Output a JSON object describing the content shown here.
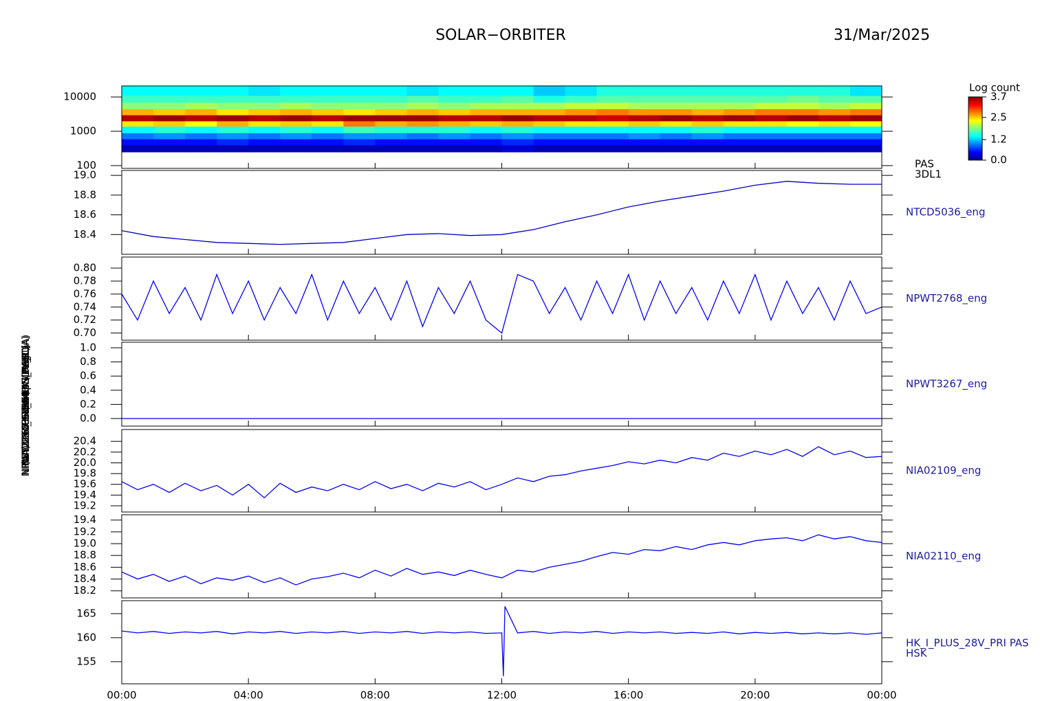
{
  "title": "SOLAR−ORBITER",
  "date": "31/Mar/2025",
  "chart_data": [
    {
      "type": "spectrogram",
      "ylabel": "E (eV)",
      "labels": [
        "PAS",
        "3DL1"
      ],
      "ylog": true,
      "ylim": [
        83,
        21000
      ],
      "yticks": [
        100,
        1000,
        10000
      ],
      "xlim": [
        0,
        24
      ],
      "x_bins": [
        0,
        1,
        2,
        3,
        4,
        5,
        6,
        7,
        8,
        9,
        10,
        11,
        12,
        13,
        14,
        15,
        16,
        17,
        18,
        19,
        20,
        21,
        22,
        23,
        24
      ],
      "energy_bins": [
        250,
        400,
        600,
        900,
        1400,
        2000,
        3000,
        4500,
        7000,
        11000,
        21000
      ],
      "colorbar": {
        "label": "Log count",
        "lim": [
          0,
          3.7
        ],
        "ticks": [
          {
            "value": 0,
            "label": "0.0"
          },
          1.2,
          2.5,
          3.7
        ]
      },
      "values": [
        [
          0.2,
          0.5,
          0.9,
          1.4,
          2.4,
          3.5,
          2.6,
          1.9,
          1.6,
          1.4
        ],
        [
          0.2,
          0.5,
          1.0,
          1.5,
          2.5,
          3.6,
          2.5,
          1.9,
          1.6,
          1.4
        ],
        [
          0.2,
          0.5,
          0.9,
          1.4,
          2.3,
          3.5,
          2.6,
          2.0,
          1.6,
          1.4
        ],
        [
          0.2,
          0.6,
          1.0,
          1.5,
          2.6,
          3.6,
          2.4,
          1.9,
          1.6,
          1.4
        ],
        [
          0.2,
          0.5,
          0.9,
          1.4,
          2.4,
          3.5,
          2.5,
          1.9,
          1.6,
          1.3
        ],
        [
          0.2,
          0.5,
          1.0,
          1.5,
          2.5,
          3.6,
          2.6,
          2.0,
          1.6,
          1.4
        ],
        [
          0.2,
          0.5,
          0.9,
          1.4,
          2.4,
          3.5,
          2.5,
          1.9,
          1.6,
          1.4
        ],
        [
          0.2,
          0.6,
          1.0,
          1.6,
          2.8,
          3.6,
          2.4,
          1.9,
          1.6,
          1.4
        ],
        [
          0.2,
          0.5,
          1.0,
          1.5,
          2.6,
          3.6,
          2.5,
          1.9,
          1.6,
          1.4
        ],
        [
          0.2,
          0.5,
          0.9,
          1.5,
          2.7,
          3.6,
          2.6,
          2.0,
          1.7,
          1.3
        ],
        [
          0.2,
          0.5,
          1.0,
          1.5,
          2.6,
          3.5,
          2.5,
          1.9,
          1.6,
          1.4
        ],
        [
          0.2,
          0.5,
          0.9,
          1.4,
          2.5,
          3.5,
          2.6,
          2.0,
          1.6,
          1.4
        ],
        [
          0.3,
          0.6,
          1.0,
          1.5,
          2.6,
          3.6,
          2.6,
          2.0,
          1.7,
          1.4
        ],
        [
          0.2,
          0.5,
          0.9,
          1.4,
          2.5,
          3.5,
          2.6,
          2.0,
          1.5,
          1.2
        ],
        [
          0.2,
          0.5,
          0.9,
          1.4,
          2.4,
          3.5,
          2.7,
          2.1,
          1.6,
          1.3
        ],
        [
          0.2,
          0.5,
          0.9,
          1.4,
          2.4,
          3.4,
          2.8,
          2.1,
          1.7,
          1.5
        ],
        [
          0.2,
          0.5,
          1.0,
          1.4,
          2.5,
          3.5,
          2.7,
          2.0,
          1.7,
          1.5
        ],
        [
          0.2,
          0.5,
          0.9,
          1.4,
          2.4,
          3.6,
          2.7,
          2.0,
          1.7,
          1.5
        ],
        [
          0.2,
          0.5,
          1.0,
          1.5,
          2.5,
          3.5,
          2.6,
          2.0,
          1.7,
          1.5
        ],
        [
          0.2,
          0.5,
          0.9,
          1.4,
          2.4,
          3.6,
          2.7,
          2.0,
          1.7,
          1.5
        ],
        [
          0.2,
          0.5,
          0.9,
          1.4,
          2.4,
          3.5,
          2.8,
          2.1,
          1.7,
          1.5
        ],
        [
          0.2,
          0.5,
          0.9,
          1.4,
          2.3,
          3.6,
          2.8,
          2.1,
          1.8,
          1.5
        ],
        [
          0.2,
          0.5,
          0.9,
          1.4,
          2.4,
          3.5,
          2.7,
          2.0,
          1.7,
          1.5
        ],
        [
          0.2,
          0.5,
          0.9,
          1.4,
          2.3,
          3.6,
          2.8,
          2.1,
          1.7,
          1.3
        ]
      ]
    },
    {
      "type": "line",
      "ylabel": "NTCD5036 Temp (DegC)",
      "labels": [
        "NTCD5036_eng"
      ],
      "color": "#0000c0",
      "ylim": [
        18.2,
        19.05
      ],
      "yticks": [
        18.4,
        18.6,
        18.8,
        {
          "value": 19,
          "label": "19.0"
        }
      ],
      "xlim": [
        0,
        24
      ],
      "x": [
        0,
        1,
        2,
        3,
        4,
        5,
        6,
        7,
        8,
        9,
        10,
        11,
        12,
        13,
        14,
        15,
        16,
        17,
        18,
        19,
        20,
        21,
        22,
        23,
        24
      ],
      "values": [
        18.44,
        18.38,
        18.35,
        18.32,
        18.31,
        18.3,
        18.31,
        18.32,
        18.36,
        18.4,
        18.41,
        18.39,
        18.4,
        18.45,
        18.53,
        18.6,
        18.68,
        18.74,
        18.79,
        18.84,
        18.9,
        18.94,
        18.92,
        18.91,
        18.91
      ]
    },
    {
      "type": "line",
      "ylabel": "NPWT2768 SWA-EAS PWR (A)",
      "labels": [
        "NPWT2768_eng"
      ],
      "color": "#0000ff",
      "ylim": [
        0.689,
        0.817
      ],
      "yticks": [
        {
          "value": 0.7,
          "label": "0.70"
        },
        0.72,
        0.74,
        0.76,
        0.78,
        {
          "value": 0.8,
          "label": "0.80"
        }
      ],
      "xlim": [
        0,
        24
      ],
      "x": [
        0,
        0.5,
        1,
        1.5,
        2,
        2.5,
        3,
        3.5,
        4,
        4.5,
        5,
        5.5,
        6,
        6.5,
        7,
        7.5,
        8,
        8.5,
        9,
        9.5,
        10,
        10.5,
        11,
        11.5,
        12,
        12.5,
        13,
        13.5,
        14,
        14.5,
        15,
        15.5,
        16,
        16.5,
        17,
        17.5,
        18,
        18.5,
        19,
        19.5,
        20,
        20.5,
        21,
        21.5,
        22,
        22.5,
        23,
        23.5,
        24
      ],
      "values": [
        0.76,
        0.72,
        0.78,
        0.73,
        0.77,
        0.72,
        0.79,
        0.73,
        0.78,
        0.72,
        0.77,
        0.73,
        0.79,
        0.72,
        0.78,
        0.73,
        0.77,
        0.72,
        0.78,
        0.71,
        0.77,
        0.73,
        0.78,
        0.72,
        0.7,
        0.79,
        0.78,
        0.73,
        0.77,
        0.72,
        0.78,
        0.73,
        0.79,
        0.72,
        0.78,
        0.73,
        0.77,
        0.72,
        0.78,
        0.73,
        0.79,
        0.72,
        0.78,
        0.73,
        0.77,
        0.72,
        0.78,
        0.73,
        0.74
      ]
    },
    {
      "type": "line",
      "ylabel": "NPWT3267 SWA-HIS PWR (A)",
      "labels": [
        "NPWT3267_eng"
      ],
      "color": "#0000ff",
      "ylim": [
        -0.107,
        1.078
      ],
      "yticks": [
        {
          "value": 0,
          "label": "0.0"
        },
        0.2,
        0.4,
        0.6,
        0.8,
        {
          "value": 1,
          "label": "1.0"
        }
      ],
      "xlim": [
        0,
        24
      ],
      "x": [
        0,
        24
      ],
      "values": [
        0,
        0
      ]
    },
    {
      "type": "line",
      "ylabel": "NIA02109 THERM (DegC)",
      "labels": [
        "NIA02109_eng"
      ],
      "color": "#0000ff",
      "ylim": [
        19.085,
        20.62
      ],
      "yticks": [
        19.2,
        19.4,
        19.6,
        19.8,
        {
          "value": 20,
          "label": "20.0"
        },
        20.2,
        20.4
      ],
      "xlim": [
        0,
        24
      ],
      "x": [
        0,
        0.5,
        1,
        1.5,
        2,
        2.5,
        3,
        3.5,
        4,
        4.5,
        5,
        5.5,
        6,
        6.5,
        7,
        7.5,
        8,
        8.5,
        9,
        9.5,
        10,
        10.5,
        11,
        11.5,
        12,
        12.5,
        13,
        13.5,
        14,
        14.5,
        15,
        15.5,
        16,
        16.5,
        17,
        17.5,
        18,
        18.5,
        19,
        19.5,
        20,
        20.5,
        21,
        21.5,
        22,
        22.5,
        23,
        23.5,
        24
      ],
      "values": [
        19.65,
        19.5,
        19.6,
        19.45,
        19.62,
        19.48,
        19.58,
        19.4,
        19.6,
        19.35,
        19.62,
        19.45,
        19.55,
        19.48,
        19.6,
        19.5,
        19.65,
        19.52,
        19.6,
        19.48,
        19.62,
        19.55,
        19.65,
        19.5,
        19.6,
        19.72,
        19.65,
        19.75,
        19.78,
        19.85,
        19.9,
        19.95,
        20.02,
        19.98,
        20.05,
        20.0,
        20.1,
        20.05,
        20.18,
        20.12,
        20.22,
        20.15,
        20.25,
        20.12,
        20.3,
        20.15,
        20.22,
        20.1,
        20.12
      ]
    },
    {
      "type": "line",
      "ylabel": "NIA02110 THERM (DegC)",
      "labels": [
        "NIA02110_eng"
      ],
      "color": "#0000ff",
      "ylim": [
        18.08,
        19.49
      ],
      "yticks": [
        18.2,
        18.4,
        18.6,
        18.8,
        {
          "value": 19,
          "label": "19.0"
        },
        19.2,
        19.4
      ],
      "xlim": [
        0,
        24
      ],
      "x": [
        0,
        0.5,
        1,
        1.5,
        2,
        2.5,
        3,
        3.5,
        4,
        4.5,
        5,
        5.5,
        6,
        6.5,
        7,
        7.5,
        8,
        8.5,
        9,
        9.5,
        10,
        10.5,
        11,
        11.5,
        12,
        12.5,
        13,
        13.5,
        14,
        14.5,
        15,
        15.5,
        16,
        16.5,
        17,
        17.5,
        18,
        18.5,
        19,
        19.5,
        20,
        20.5,
        21,
        21.5,
        22,
        22.5,
        23,
        23.5,
        24
      ],
      "values": [
        18.52,
        18.4,
        18.48,
        18.36,
        18.45,
        18.32,
        18.42,
        18.38,
        18.45,
        18.34,
        18.42,
        18.3,
        18.4,
        18.44,
        18.5,
        18.42,
        18.55,
        18.45,
        18.58,
        18.48,
        18.52,
        18.46,
        18.55,
        18.48,
        18.42,
        18.55,
        18.52,
        18.6,
        18.65,
        18.7,
        18.78,
        18.85,
        18.82,
        18.9,
        18.88,
        18.95,
        18.9,
        18.98,
        19.02,
        18.98,
        19.05,
        19.08,
        19.1,
        19.05,
        19.15,
        19.08,
        19.12,
        19.05,
        19.02
      ]
    },
    {
      "type": "line",
      "ylabel": "(nA) DM_HK_IMON_PCDU",
      "labels": [
        "HK_I_PLUS_28V_PRI PAS",
        "HSK"
      ],
      "color": "#0000ff",
      "ylim": [
        150.4,
        167.7
      ],
      "yticks": [
        155,
        160,
        165
      ],
      "xlim": [
        0,
        24
      ],
      "xticks": [
        {
          "value": 0,
          "label": "00:00"
        },
        {
          "value": 4,
          "label": "04:00"
        },
        {
          "value": 8,
          "label": "08:00"
        },
        {
          "value": 12,
          "label": "12:00"
        },
        {
          "value": 16,
          "label": "16:00"
        },
        {
          "value": 20,
          "label": "20:00"
        },
        {
          "value": 24,
          "label": "00:00"
        }
      ],
      "x": [
        0,
        0.5,
        1,
        1.5,
        2,
        2.5,
        3,
        3.5,
        4,
        4.5,
        5,
        5.5,
        6,
        6.5,
        7,
        7.5,
        8,
        8.5,
        9,
        9.5,
        10,
        10.5,
        11,
        11.5,
        12,
        12.05,
        12.1,
        12.5,
        13,
        13.5,
        14,
        14.5,
        15,
        15.5,
        16,
        16.5,
        17,
        17.5,
        18,
        18.5,
        19,
        19.5,
        20,
        20.5,
        21,
        21.5,
        22,
        22.5,
        23,
        23.5,
        24
      ],
      "values": [
        161.4,
        161.0,
        161.3,
        160.9,
        161.2,
        161.0,
        161.3,
        160.8,
        161.2,
        161.0,
        161.3,
        160.9,
        161.2,
        161.0,
        161.3,
        160.9,
        161.2,
        161.0,
        161.3,
        160.9,
        161.2,
        161.0,
        161.2,
        160.9,
        161.0,
        152.0,
        166.5,
        161.0,
        161.3,
        160.9,
        161.2,
        161.0,
        161.3,
        160.9,
        161.2,
        161.0,
        161.2,
        160.9,
        161.1,
        160.9,
        161.2,
        160.8,
        161.1,
        160.9,
        161.1,
        160.8,
        161.0,
        160.8,
        161.0,
        160.7,
        161.0
      ]
    }
  ]
}
